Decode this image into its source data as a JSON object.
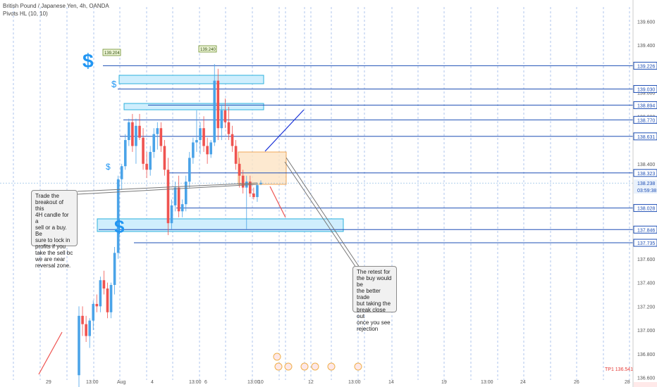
{
  "header": {
    "symbol": "British Pound / Japanese Yen, 4h, OANDA",
    "indicator": "Pivots HL (10, 10)"
  },
  "notes": {
    "left": "Trade the\nbreakout of this\n4H candle for a\nsell or a buy.  Be\nsure to lock in\nprofits if you\ntake the sell bc\nwe are near\nreversal zone.",
    "right": "The retest for\nthe buy would be\nthe better trade\nbut taking the\nbreak close out\nonce you see\nrejection"
  },
  "colors": {
    "up": "#4aa3e8",
    "down": "#ef5350",
    "level": "#1e4fb5",
    "zone_fill": "#cfeefd",
    "zone_edge": "#2bb0dd",
    "dollar": "#2196f3",
    "box_fill": "#fde3c4",
    "box_edge": "#f0a85a",
    "grid_v": "#9bb8e8",
    "tp": "#e53935"
  },
  "chart_data": {
    "type": "candlestick",
    "symbol": "GBPJPY",
    "timeframe": "4h",
    "y_ticks": [
      136.6,
      136.8,
      137.0,
      137.2,
      137.4,
      137.6,
      138.4,
      138.8,
      139.0,
      139.4,
      139.6
    ],
    "y_range": [
      136.58,
      139.72
    ],
    "x_labels": [
      "29",
      "13:00",
      "Aug",
      "4",
      "13:00",
      "6",
      "13:00",
      "10",
      "12",
      "13:00",
      "14",
      "19",
      "13:00",
      "24",
      "26",
      "28"
    ],
    "levels": [
      139.226,
      139.03,
      138.894,
      138.77,
      138.631,
      138.323,
      138.028,
      137.846,
      137.735
    ],
    "current_price": "138.238",
    "countdown": "03:59:38",
    "pivot_labels": [
      "139.204",
      "139.240"
    ],
    "tp_label": "TP1 136.541",
    "candles": [
      [
        136.62,
        137.2,
        136.48,
        137.12
      ],
      [
        137.12,
        137.2,
        136.95,
        137.05
      ],
      [
        137.05,
        137.12,
        136.9,
        136.95
      ],
      [
        136.95,
        137.1,
        136.85,
        137.08
      ],
      [
        137.08,
        137.25,
        137.0,
        137.22
      ],
      [
        137.22,
        137.3,
        137.15,
        137.2
      ],
      [
        137.2,
        137.45,
        137.15,
        137.42
      ],
      [
        137.42,
        137.5,
        137.3,
        137.35
      ],
      [
        137.35,
        137.4,
        137.1,
        137.15
      ],
      [
        137.15,
        137.4,
        137.1,
        137.38
      ],
      [
        137.38,
        137.7,
        137.3,
        137.65
      ],
      [
        137.65,
        138.3,
        137.6,
        138.27
      ],
      [
        138.27,
        138.4,
        138.18,
        138.38
      ],
      [
        138.38,
        138.65,
        138.35,
        138.6
      ],
      [
        138.6,
        138.78,
        138.55,
        138.75
      ],
      [
        138.75,
        138.82,
        138.5,
        138.55
      ],
      [
        138.55,
        138.78,
        138.4,
        138.72
      ],
      [
        138.72,
        138.82,
        138.6,
        138.62
      ],
      [
        138.62,
        138.7,
        138.35,
        138.4
      ],
      [
        138.4,
        138.5,
        138.28,
        138.35
      ],
      [
        138.35,
        138.55,
        138.3,
        138.5
      ],
      [
        138.5,
        138.7,
        138.45,
        138.65
      ],
      [
        138.65,
        138.75,
        138.52,
        138.7
      ],
      [
        138.7,
        138.75,
        138.5,
        138.55
      ],
      [
        138.55,
        138.6,
        138.3,
        138.35
      ],
      [
        138.35,
        138.45,
        137.8,
        137.9
      ],
      [
        137.9,
        138.1,
        137.85,
        138.05
      ],
      [
        138.05,
        138.25,
        138.0,
        138.2
      ],
      [
        138.2,
        138.3,
        137.95,
        138.0
      ],
      [
        138.0,
        138.1,
        137.95,
        138.06
      ],
      [
        138.06,
        138.3,
        138.0,
        138.25
      ],
      [
        138.25,
        138.5,
        138.2,
        138.45
      ],
      [
        138.45,
        138.62,
        138.4,
        138.58
      ],
      [
        138.58,
        138.85,
        138.5,
        138.6
      ],
      [
        138.6,
        138.75,
        138.48,
        138.7
      ],
      [
        138.7,
        138.8,
        138.5,
        138.55
      ],
      [
        138.55,
        138.62,
        138.4,
        138.48
      ],
      [
        138.48,
        138.6,
        138.45,
        138.58
      ],
      [
        138.58,
        139.24,
        138.55,
        139.1
      ],
      [
        139.1,
        139.2,
        138.6,
        138.7
      ],
      [
        138.7,
        138.9,
        138.6,
        138.85
      ],
      [
        138.85,
        138.95,
        138.7,
        138.75
      ],
      [
        138.75,
        138.88,
        138.6,
        138.65
      ],
      [
        138.65,
        138.72,
        138.5,
        138.55
      ],
      [
        138.55,
        138.6,
        138.35,
        138.4
      ],
      [
        138.4,
        138.45,
        138.2,
        138.3
      ],
      [
        138.3,
        138.35,
        138.15,
        138.2
      ],
      [
        138.2,
        138.3,
        137.85,
        138.25
      ],
      [
        138.25,
        138.3,
        138.12,
        138.15
      ],
      [
        138.15,
        138.2,
        138.1,
        138.12
      ],
      [
        138.12,
        138.24,
        138.08,
        138.22
      ],
      [
        138.23,
        138.26,
        138.22,
        138.24
      ]
    ]
  }
}
